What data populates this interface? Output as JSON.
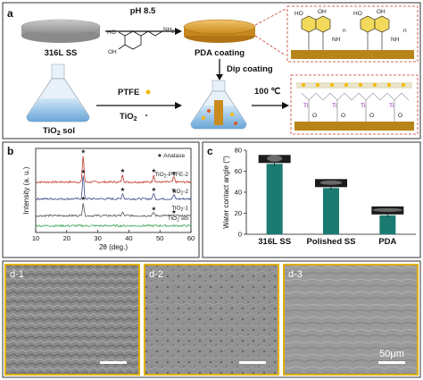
{
  "panel_a": {
    "letter": "a",
    "steel_label": "316L SS",
    "ph_label": "pH 8.5",
    "pda_label": "PDA coating",
    "dip_label": "Dip coating",
    "tio2_sol_label": "TiO",
    "tio2_sol_sub": "2",
    "tio2_sol_tail": " sol",
    "ptfe_label": "PTFE",
    "tio2_label": "TiO",
    "tio2_sub": "2",
    "temp_label": "100 ℃",
    "dopamine_nh2": "NH",
    "dopamine_nh2_sub": "2",
    "dopamine_ho": "HO",
    "dopamine_oh": "OH",
    "struct_labels": {
      "ho": "HO",
      "oh": "OH",
      "nh": "NH",
      "n": "n",
      "o": "O",
      "ti": "Ti"
    }
  },
  "chart_data": [
    {
      "type": "line",
      "panel": "b",
      "xlabel": "2θ (deg.)",
      "ylabel": "Intensity (a. u.)",
      "xlim": [
        10,
        60
      ],
      "xticks": [
        10,
        20,
        30,
        40,
        50,
        60
      ],
      "legend_marker": "★",
      "legend_label": "Anatase",
      "series": [
        {
          "name": "TiO2-PTFE-2",
          "color": "#c0392b",
          "offset": 3.0,
          "peaks": [
            [
              25.3,
              1.6
            ],
            [
              38.0,
              0.45
            ],
            [
              48.0,
              0.45
            ],
            [
              54.5,
              0.3
            ]
          ]
        },
        {
          "name": "TiO2-2",
          "color": "#3f4a8a",
          "offset": 2.0,
          "peaks": [
            [
              25.3,
              1.4
            ],
            [
              38.0,
              0.35
            ],
            [
              48.0,
              0.35
            ],
            [
              54.5,
              0.25
            ]
          ]
        },
        {
          "name": "TiO2-1",
          "color": "#555555",
          "offset": 1.0,
          "peaks": [
            [
              25.3,
              0.8
            ],
            [
              38.0,
              0.2
            ],
            [
              48.0,
              0.2
            ]
          ]
        },
        {
          "name": "TiO2 sol",
          "color": "#3aa655",
          "offset": 0.4,
          "peaks": []
        }
      ],
      "series_labels": [
        {
          "main": "TiO",
          "sub": "2",
          "tail": "-PTFE-2"
        },
        {
          "main": "TiO",
          "sub": "2",
          "tail": "-2"
        },
        {
          "main": "TiO",
          "sub": "2",
          "tail": "-1"
        },
        {
          "main": "TiO",
          "sub": "2",
          "tail": " sol"
        }
      ],
      "star_positions": [
        [
          25.3,
          0
        ],
        [
          38.0,
          0
        ],
        [
          48.0,
          0
        ],
        [
          54.5,
          0
        ],
        [
          25.3,
          1
        ],
        [
          38.0,
          1
        ],
        [
          48.0,
          1
        ],
        [
          54.5,
          1
        ],
        [
          25.3,
          2
        ],
        [
          48.0,
          2
        ],
        [
          54.5,
          2
        ]
      ]
    },
    {
      "type": "bar",
      "panel": "c",
      "ylabel": "Water contact angle (°)",
      "categories": [
        "316L SS",
        "Polished SS",
        "PDA"
      ],
      "values": [
        67,
        44,
        18
      ],
      "errors": [
        2.5,
        1.5,
        1.5
      ],
      "ylim": [
        0,
        80
      ],
      "yticks": [
        0,
        20,
        40,
        60,
        80
      ],
      "color": "#1b7a72"
    }
  ],
  "panel_d": {
    "labels": [
      "d-1",
      "d-2",
      "d-3"
    ],
    "scale_bar_label": "50μm"
  }
}
